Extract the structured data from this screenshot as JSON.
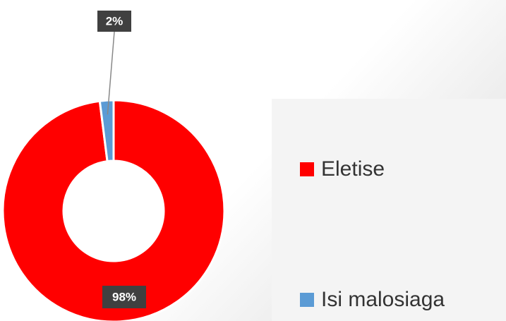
{
  "chart_data": {
    "type": "donut",
    "categories": [
      "Eletise",
      "Isi malosiaga"
    ],
    "values": [
      98,
      2
    ],
    "value_labels": [
      "98%",
      "2%"
    ],
    "colors": [
      "#ff0000",
      "#5b9bd5"
    ],
    "legend": "right"
  }
}
